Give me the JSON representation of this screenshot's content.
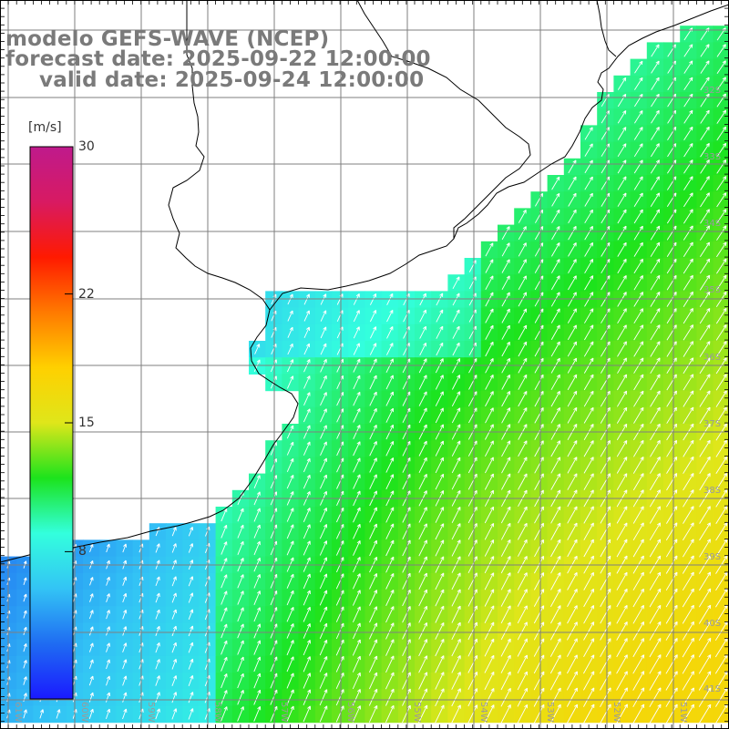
{
  "title": {
    "line1": "modelo GEFS-WAVE (NCEP)",
    "line2": "forecast date: 2025-09-22 12:00:00",
    "line3": "valid date: 2025-09-24 12:00:00"
  },
  "colorbar": {
    "unit": "[m/s]",
    "min": 0,
    "max": 30,
    "ticks": [
      {
        "label": "30",
        "value": 30
      },
      {
        "label": "22",
        "value": 22
      },
      {
        "label": "15",
        "value": 15
      },
      {
        "label": "8",
        "value": 8
      }
    ],
    "colors": [
      "#1a1aff",
      "#1f6cf2",
      "#33c4f5",
      "#33ffdd",
      "#1ce31c",
      "#dfe61a",
      "#ffd000",
      "#ff7a00",
      "#ff1a00",
      "#d81a62",
      "#bf1a8c"
    ]
  },
  "map": {
    "longitude_labels": [
      "61W",
      "60W",
      "59W",
      "58W",
      "57W",
      "56W",
      "55W",
      "54W",
      "53W",
      "52W",
      "51W"
    ],
    "latitude_labels": [
      "32S",
      "33S",
      "34S",
      "35S",
      "36S",
      "37S",
      "38S",
      "39S",
      "40S",
      "41S"
    ],
    "grid_color": "#7f7f7f",
    "coast_color": "#000000",
    "arrow_color": "#ffffff"
  }
}
